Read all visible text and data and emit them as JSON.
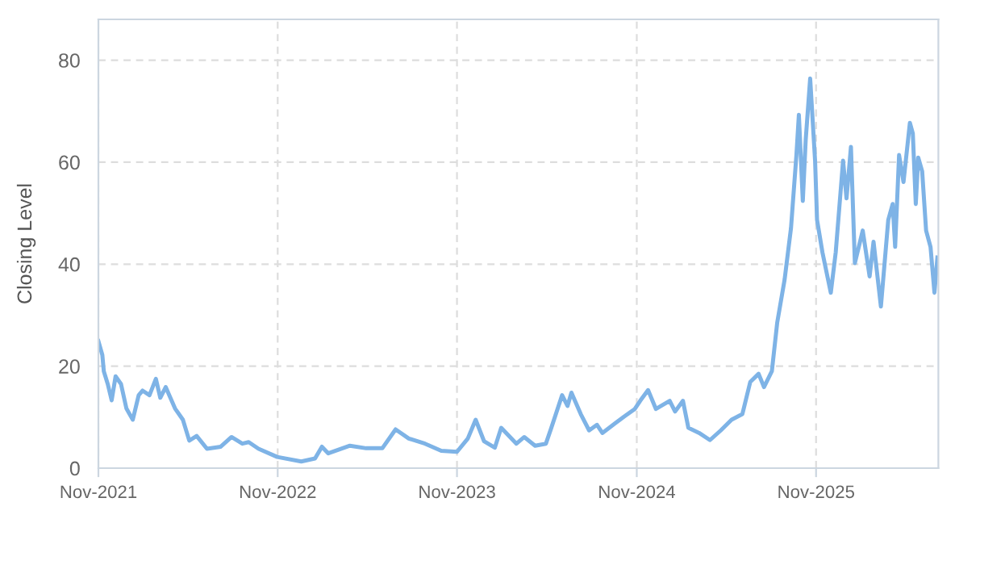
{
  "chart_data": {
    "type": "line",
    "ylabel": "Closing Level",
    "xlim": [
      "2021-11-01",
      "2026-07-08"
    ],
    "ylim": [
      0,
      88
    ],
    "yticks": [
      0,
      20,
      40,
      60,
      80
    ],
    "xticks": [
      {
        "value": "2021-11-01",
        "label": "Nov-2021"
      },
      {
        "value": "2022-11-01",
        "label": "Nov-2022"
      },
      {
        "value": "2023-11-01",
        "label": "Nov-2023"
      },
      {
        "value": "2024-11-01",
        "label": "Nov-2024"
      },
      {
        "value": "2025-11-01",
        "label": "Nov-2025"
      }
    ],
    "grid": true,
    "marker": "none",
    "line_style": "solid",
    "series": [
      {
        "color": "#7eb3e6",
        "x": [
          "2021-11-01",
          "2021-11-09",
          "2021-11-12",
          "2021-11-20",
          "2021-11-28",
          "2021-12-06",
          "2021-12-17",
          "2021-12-28",
          "2022-01-10",
          "2022-01-22",
          "2022-01-30",
          "2022-02-13",
          "2022-02-26",
          "2022-03-07",
          "2022-03-18",
          "2022-04-06",
          "2022-04-22",
          "2022-05-05",
          "2022-05-20",
          "2022-06-10",
          "2022-07-08",
          "2022-07-30",
          "2022-08-21",
          "2022-09-03",
          "2022-09-23",
          "2022-10-31",
          "2022-12-19",
          "2023-01-16",
          "2023-01-30",
          "2023-02-12",
          "2023-03-28",
          "2023-04-30",
          "2023-06-02",
          "2023-06-29",
          "2023-07-26",
          "2023-08-28",
          "2023-09-30",
          "2023-11-01",
          "2023-11-23",
          "2023-12-09",
          "2023-12-26",
          "2024-01-17",
          "2024-01-30",
          "2024-03-01",
          "2024-03-17",
          "2024-04-08",
          "2024-04-30",
          "2024-05-11",
          "2024-06-02",
          "2024-06-13",
          "2024-06-21",
          "2024-07-10",
          "2024-07-27",
          "2024-08-12",
          "2024-08-23",
          "2024-09-14",
          "2024-10-06",
          "2024-10-28",
          "2024-11-08",
          "2024-11-24",
          "2024-12-10",
          "2025-01-07",
          "2025-01-18",
          "2025-02-03",
          "2025-02-14",
          "2025-03-08",
          "2025-03-30",
          "2025-04-21",
          "2025-05-13",
          "2025-06-04",
          "2025-06-20",
          "2025-07-07",
          "2025-07-18",
          "2025-08-03",
          "2025-08-14",
          "2025-08-29",
          "2025-09-11",
          "2025-09-22",
          "2025-09-27",
          "2025-10-05",
          "2025-10-11",
          "2025-10-20",
          "2025-10-30",
          "2025-11-03",
          "2025-11-14",
          "2025-12-01",
          "2025-12-11",
          "2025-12-26",
          "2026-01-02",
          "2026-01-11",
          "2026-01-19",
          "2026-02-04",
          "2026-02-18",
          "2026-02-26",
          "2026-03-13",
          "2026-03-28",
          "2026-04-06",
          "2026-04-11",
          "2026-04-19",
          "2026-04-28",
          "2026-05-11",
          "2026-05-17",
          "2026-05-23",
          "2026-05-28",
          "2026-06-05",
          "2026-06-13",
          "2026-06-22",
          "2026-06-30",
          "2026-07-06"
        ],
        "values": [
          24.9,
          22.2,
          19,
          16.5,
          13.3,
          18,
          16.5,
          11.7,
          9.5,
          14.3,
          15.2,
          14.3,
          17.5,
          13.8,
          15.9,
          11.7,
          9.5,
          5.4,
          6.3,
          3.8,
          4.2,
          6.1,
          4.8,
          5.1,
          3.8,
          2.2,
          1.3,
          1.9,
          4.2,
          2.9,
          4.4,
          3.9,
          3.9,
          7.6,
          5.8,
          4.8,
          3.4,
          3.2,
          5.8,
          9.5,
          5.3,
          4.0,
          7.9,
          4.8,
          6.1,
          4.4,
          4.8,
          7.9,
          14.3,
          12.2,
          14.8,
          10.6,
          7.4,
          8.5,
          6.9,
          8.5,
          10.1,
          11.6,
          13.2,
          15.3,
          11.6,
          13.2,
          11.1,
          13.2,
          7.9,
          6.9,
          5.5,
          7.4,
          9.5,
          10.6,
          16.9,
          18.5,
          15.9,
          19,
          28.6,
          37,
          47.1,
          61.4,
          69.3,
          52.4,
          64.5,
          76.4,
          60.3,
          48.7,
          42.3,
          34.4,
          42.3,
          60.3,
          52.9,
          63,
          40.2,
          46.6,
          37.6,
          44.4,
          31.7,
          48.7,
          51.8,
          43.4,
          61.4,
          56.1,
          67.7,
          65.6,
          51.8,
          60.9,
          58.2,
          46.6,
          43.4,
          34.4,
          41.3
        ]
      }
    ]
  }
}
